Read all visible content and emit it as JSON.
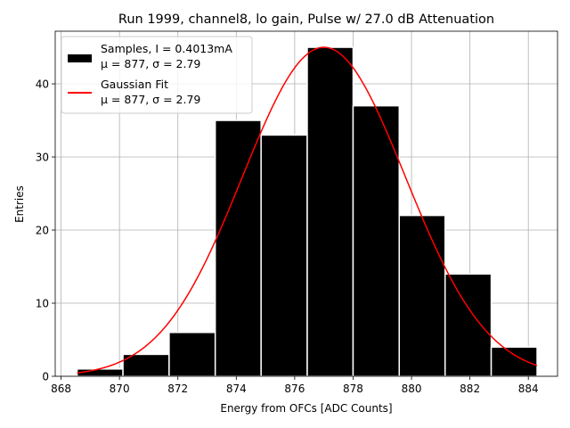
{
  "chart_data": {
    "type": "histogram",
    "title": "Run 1999, channel8, lo gain, Pulse w/ 27.0 dB Attenuation",
    "xlabel": "Energy from OFCs [ADC Counts]",
    "ylabel": "Entries",
    "xlim": [
      867.8,
      885.0
    ],
    "ylim": [
      0,
      47.2
    ],
    "xticks": [
      868,
      870,
      872,
      874,
      876,
      878,
      880,
      882,
      884
    ],
    "yticks": [
      0,
      10,
      20,
      30,
      40
    ],
    "grid": true,
    "bins": [
      {
        "x0": 868.55,
        "x1": 870.12,
        "count": 1
      },
      {
        "x0": 870.12,
        "x1": 871.7,
        "count": 3
      },
      {
        "x0": 871.7,
        "x1": 873.28,
        "count": 6
      },
      {
        "x0": 873.28,
        "x1": 874.85,
        "count": 35
      },
      {
        "x0": 874.85,
        "x1": 876.43,
        "count": 33
      },
      {
        "x0": 876.43,
        "x1": 878.0,
        "count": 45
      },
      {
        "x0": 878.0,
        "x1": 879.58,
        "count": 37
      },
      {
        "x0": 879.58,
        "x1": 881.15,
        "count": 22
      },
      {
        "x0": 881.15,
        "x1": 882.73,
        "count": 14
      },
      {
        "x0": 882.73,
        "x1": 884.3,
        "count": 4
      }
    ],
    "fit": {
      "type": "gaussian",
      "amplitude": 45.0,
      "mu": 877.0,
      "sigma": 2.79,
      "x_range": [
        868.55,
        884.3
      ]
    },
    "legend": {
      "location": "top-left",
      "entries": [
        {
          "label": "Samples, I = 0.4013mA",
          "sublabel": "μ = 877, σ = 2.79",
          "color": "#000000",
          "kind": "patch"
        },
        {
          "label": "Gaussian Fit",
          "sublabel": "μ = 877, σ = 2.79",
          "color": "#ff0000",
          "kind": "line"
        }
      ]
    },
    "colors": {
      "bars": "#000000",
      "bar_edge": "#ffffff",
      "fit": "#ff0000",
      "grid": "#b0b0b0"
    }
  }
}
